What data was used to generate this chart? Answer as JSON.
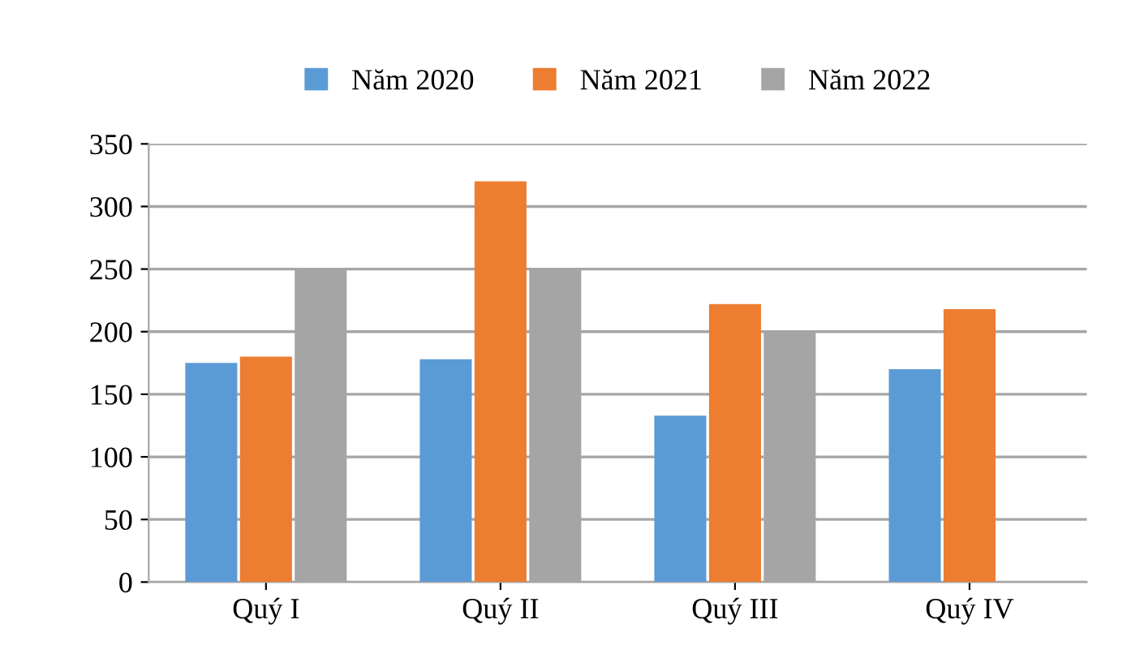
{
  "chart_data": {
    "type": "bar",
    "categories": [
      "Quý I",
      "Quý II",
      "Quý III",
      "Quý IV"
    ],
    "series": [
      {
        "name": "Năm 2020",
        "color": "#5b9bd5",
        "values": [
          175,
          178,
          133,
          170
        ]
      },
      {
        "name": "Năm 2021",
        "color": "#ed7d31",
        "values": [
          180,
          320,
          222,
          218
        ]
      },
      {
        "name": "Năm 2022",
        "color": "#a5a5a5",
        "values": [
          250,
          250,
          200,
          null
        ]
      }
    ],
    "ylim": [
      0,
      350
    ],
    "yticks": [
      0,
      50,
      100,
      150,
      200,
      250,
      300,
      350
    ],
    "grid": "y",
    "legend": "top"
  }
}
